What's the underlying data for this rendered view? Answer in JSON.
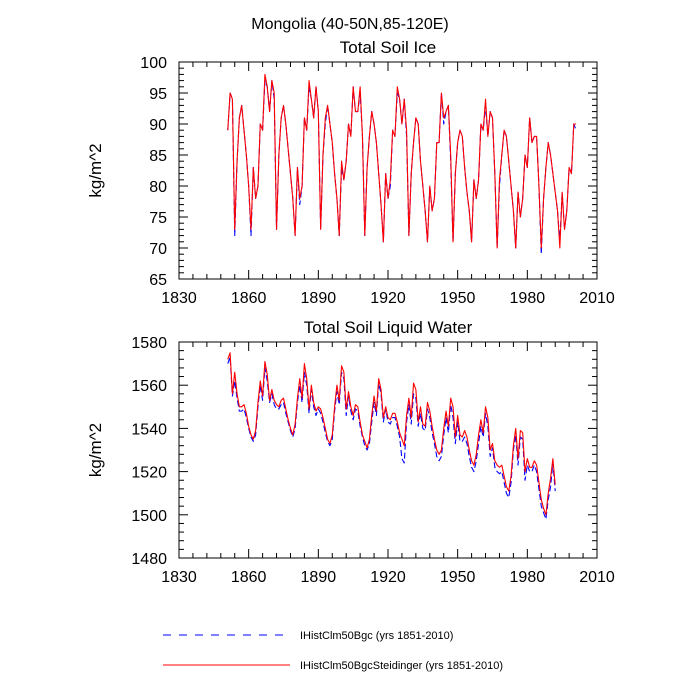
{
  "figure": {
    "title": "Mongolia (40-50N,85-120E)"
  },
  "legend": [
    {
      "label": "IHistClm50Bgc (yrs 1851-2010)",
      "color": "#0000ff",
      "style": "dashed"
    },
    {
      "label": "IHistClm50BgcSteidinger (yrs 1851-2010)",
      "color": "#ff0000",
      "style": "solid"
    }
  ],
  "chart_data": [
    {
      "type": "line",
      "title": "Total Soil Ice",
      "xlabel": "",
      "ylabel": "kg/m^2",
      "xlim": [
        1830,
        2010
      ],
      "ylim": [
        65,
        100
      ],
      "xticks": [
        1830,
        1860,
        1890,
        1920,
        1950,
        1980,
        2010
      ],
      "yticks": [
        65,
        70,
        75,
        80,
        85,
        90,
        95,
        100
      ],
      "grid": false,
      "series": [
        {
          "name": "IHistClm50Bgc (yrs 1851-2010)",
          "color": "#0000ff",
          "style": "dashed",
          "x_start": 1851,
          "values": [
            89,
            95,
            94,
            72,
            84,
            91,
            93,
            89,
            85,
            80,
            72,
            83,
            78,
            80,
            90,
            89,
            97,
            96,
            92,
            97,
            94,
            73,
            85,
            91,
            93,
            90,
            86,
            82,
            78,
            72,
            83,
            77,
            80,
            91,
            89,
            96,
            94,
            91,
            96,
            92,
            73,
            85,
            90,
            93,
            90,
            87,
            82,
            78,
            72,
            83,
            81,
            84,
            90,
            88,
            96,
            92,
            92,
            95,
            88,
            72,
            83,
            88,
            92,
            90,
            87,
            82,
            77,
            71,
            82,
            78,
            80,
            89,
            88,
            95,
            94,
            90,
            94,
            88,
            72,
            82,
            87,
            91,
            90,
            84,
            80,
            76,
            71,
            80,
            76,
            78,
            87,
            87,
            95,
            90,
            92,
            93,
            84,
            71,
            82,
            87,
            89,
            88,
            83,
            79,
            76,
            71,
            81,
            78,
            81,
            90,
            89,
            93,
            88,
            92,
            91,
            82,
            70,
            80,
            85,
            89,
            88,
            84,
            80,
            76,
            70,
            79,
            75,
            78,
            85,
            83,
            91,
            87,
            88,
            88,
            80,
            69,
            78,
            83,
            87,
            85,
            82,
            79,
            76,
            71,
            79,
            73,
            76,
            83,
            82,
            90,
            89
          ]
        },
        {
          "name": "IHistClm50BgcSteidinger (yrs 1851-2010)",
          "color": "#ff0000",
          "style": "solid",
          "x_start": 1851,
          "values": [
            89,
            95,
            94,
            73,
            84,
            91,
            93,
            89,
            85,
            80,
            73,
            83,
            78,
            80,
            90,
            89,
            98,
            96,
            92,
            97,
            95,
            73,
            85,
            91,
            93,
            90,
            86,
            82,
            78,
            72,
            83,
            78,
            80,
            91,
            89,
            97,
            94,
            91,
            96,
            92,
            73,
            85,
            91,
            93,
            90,
            87,
            82,
            78,
            72,
            84,
            81,
            84,
            90,
            88,
            96,
            92,
            92,
            96,
            88,
            72,
            83,
            88,
            92,
            90,
            87,
            82,
            77,
            71,
            82,
            78,
            81,
            89,
            88,
            96,
            94,
            90,
            94,
            89,
            72,
            82,
            87,
            91,
            90,
            84,
            80,
            76,
            71,
            80,
            76,
            78,
            87,
            87,
            95,
            91,
            92,
            93,
            85,
            71,
            82,
            87,
            89,
            88,
            83,
            79,
            76,
            71,
            81,
            78,
            81,
            90,
            89,
            94,
            88,
            92,
            91,
            82,
            70,
            81,
            85,
            89,
            88,
            84,
            80,
            76,
            70,
            79,
            75,
            78,
            85,
            83,
            91,
            87,
            88,
            88,
            80,
            70,
            78,
            83,
            87,
            85,
            82,
            79,
            76,
            70,
            79,
            73,
            76,
            83,
            82,
            90,
            90
          ]
        }
      ]
    },
    {
      "type": "line",
      "title": "Total Soil Liquid Water",
      "xlabel": "",
      "ylabel": "kg/m^2",
      "xlim": [
        1830,
        2010
      ],
      "ylim": [
        1480,
        1580
      ],
      "xticks": [
        1830,
        1860,
        1890,
        1920,
        1950,
        1980,
        2010
      ],
      "yticks": [
        1480,
        1500,
        1520,
        1540,
        1560,
        1580
      ],
      "grid": false,
      "series": [
        {
          "name": "IHistClm50Bgc (yrs 1851-2010)",
          "color": "#0000ff",
          "style": "dashed",
          "x_start": 1851,
          "values": [
            1570,
            1573,
            1555,
            1562,
            1554,
            1548,
            1548,
            1549,
            1545,
            1540,
            1536,
            1534,
            1537,
            1550,
            1560,
            1553,
            1568,
            1562,
            1552,
            1556,
            1551,
            1549,
            1549,
            1551,
            1552,
            1547,
            1543,
            1539,
            1536,
            1540,
            1552,
            1560,
            1552,
            1566,
            1560,
            1547,
            1558,
            1550,
            1546,
            1549,
            1547,
            1543,
            1538,
            1534,
            1532,
            1535,
            1548,
            1557,
            1551,
            1566,
            1563,
            1546,
            1555,
            1548,
            1544,
            1549,
            1548,
            1541,
            1536,
            1532,
            1530,
            1533,
            1543,
            1552,
            1546,
            1561,
            1556,
            1543,
            1549,
            1543,
            1542,
            1545,
            1545,
            1541,
            1536,
            1526,
            1524,
            1543,
            1551,
            1542,
            1556,
            1554,
            1541,
            1547,
            1540,
            1539,
            1549,
            1545,
            1538,
            1533,
            1527,
            1525,
            1527,
            1537,
            1545,
            1538,
            1551,
            1545,
            1533,
            1543,
            1534,
            1534,
            1536,
            1533,
            1527,
            1522,
            1520,
            1525,
            1533,
            1541,
            1536,
            1547,
            1541,
            1527,
            1531,
            1522,
            1520,
            1519,
            1520,
            1515,
            1510,
            1508,
            1515,
            1530,
            1537,
            1523,
            1536,
            1535,
            1516,
            1523,
            1520,
            1520,
            1523,
            1520,
            1512,
            1504,
            1501,
            1498,
            1507,
            1513,
            1524,
            1511
          ]
        },
        {
          "name": "IHistClm50BgcSteidinger (yrs 1851-2010)",
          "color": "#ff0000",
          "style": "solid",
          "x_start": 1851,
          "values": [
            1572,
            1575,
            1556,
            1566,
            1556,
            1550,
            1550,
            1551,
            1547,
            1541,
            1537,
            1535,
            1539,
            1552,
            1562,
            1555,
            1571,
            1565,
            1553,
            1558,
            1553,
            1551,
            1550,
            1553,
            1554,
            1549,
            1544,
            1540,
            1537,
            1542,
            1554,
            1563,
            1554,
            1570,
            1563,
            1549,
            1560,
            1552,
            1548,
            1550,
            1549,
            1545,
            1540,
            1535,
            1533,
            1537,
            1550,
            1560,
            1553,
            1569,
            1566,
            1549,
            1557,
            1550,
            1546,
            1551,
            1550,
            1543,
            1537,
            1534,
            1531,
            1535,
            1546,
            1555,
            1548,
            1563,
            1558,
            1545,
            1550,
            1545,
            1544,
            1547,
            1547,
            1543,
            1538,
            1535,
            1532,
            1546,
            1554,
            1545,
            1561,
            1558,
            1543,
            1550,
            1542,
            1541,
            1552,
            1548,
            1541,
            1535,
            1530,
            1528,
            1530,
            1540,
            1548,
            1541,
            1554,
            1550,
            1536,
            1546,
            1537,
            1536,
            1539,
            1536,
            1530,
            1525,
            1523,
            1528,
            1537,
            1544,
            1538,
            1550,
            1545,
            1530,
            1533,
            1525,
            1523,
            1522,
            1523,
            1518,
            1513,
            1511,
            1518,
            1532,
            1540,
            1526,
            1539,
            1538,
            1520,
            1526,
            1522,
            1522,
            1525,
            1523,
            1515,
            1507,
            1503,
            1500,
            1510,
            1517,
            1526,
            1514
          ]
        }
      ]
    }
  ]
}
